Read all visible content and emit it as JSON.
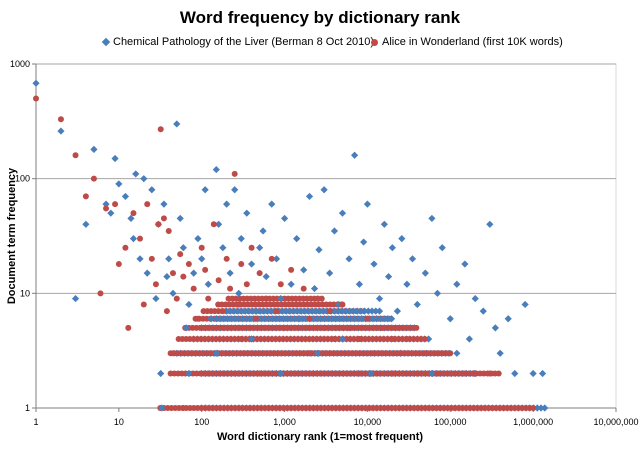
{
  "chart_data": {
    "type": "scatter",
    "title": "Word frequency by dictionary rank",
    "xlabel": "Word dictionary rank (1=most frequent)",
    "ylabel": "Document term frequency",
    "xscale": "log",
    "yscale": "log",
    "xlim": [
      1,
      10000000
    ],
    "ylim": [
      1,
      1000
    ],
    "x_ticks": [
      1,
      10,
      100,
      1000,
      10000,
      100000,
      1000000,
      10000000
    ],
    "x_tick_labels": [
      "1",
      "10",
      "100",
      "1,000",
      "10,000",
      "100,000",
      "1,000,000",
      "10,000,000"
    ],
    "y_ticks": [
      1,
      10,
      100,
      1000
    ],
    "y_tick_labels": [
      "1",
      "10",
      "100",
      "1000"
    ],
    "grid": "horizontal",
    "legend_position": "top",
    "colors": {
      "series1": "#4a7ebb",
      "series2": "#be4b48",
      "grid": "#a6a6a6",
      "axis": "#7f7f7f"
    },
    "series": [
      {
        "name": "Chemical Pathology of the Liver (Berman 8 Oct 2010)",
        "marker": "diamond",
        "points": [
          [
            1,
            680
          ],
          [
            2,
            260
          ],
          [
            3,
            9
          ],
          [
            4,
            40
          ],
          [
            5,
            180
          ],
          [
            7,
            60
          ],
          [
            8,
            50
          ],
          [
            9,
            150
          ],
          [
            10,
            90
          ],
          [
            12,
            70
          ],
          [
            14,
            45
          ],
          [
            15,
            30
          ],
          [
            16,
            110
          ],
          [
            18,
            20
          ],
          [
            20,
            100
          ],
          [
            22,
            15
          ],
          [
            25,
            80
          ],
          [
            28,
            9
          ],
          [
            30,
            40
          ],
          [
            32,
            2
          ],
          [
            33,
            1
          ],
          [
            35,
            60
          ],
          [
            38,
            14
          ],
          [
            40,
            20
          ],
          [
            45,
            10
          ],
          [
            50,
            300
          ],
          [
            55,
            45
          ],
          [
            60,
            25
          ],
          [
            65,
            5
          ],
          [
            70,
            8
          ],
          [
            80,
            15
          ],
          [
            90,
            30
          ],
          [
            100,
            20
          ],
          [
            110,
            80
          ],
          [
            120,
            12
          ],
          [
            130,
            6
          ],
          [
            150,
            120
          ],
          [
            160,
            40
          ],
          [
            180,
            25
          ],
          [
            200,
            60
          ],
          [
            220,
            15
          ],
          [
            250,
            80
          ],
          [
            280,
            10
          ],
          [
            300,
            30
          ],
          [
            350,
            50
          ],
          [
            400,
            18
          ],
          [
            450,
            7
          ],
          [
            500,
            25
          ],
          [
            550,
            35
          ],
          [
            600,
            14
          ],
          [
            700,
            60
          ],
          [
            800,
            20
          ],
          [
            900,
            9
          ],
          [
            1000,
            45
          ],
          [
            1200,
            12
          ],
          [
            1400,
            30
          ],
          [
            1500,
            6
          ],
          [
            1700,
            16
          ],
          [
            2000,
            70
          ],
          [
            2300,
            11
          ],
          [
            2600,
            24
          ],
          [
            3000,
            80
          ],
          [
            3500,
            15
          ],
          [
            4000,
            35
          ],
          [
            4500,
            8
          ],
          [
            5000,
            50
          ],
          [
            6000,
            20
          ],
          [
            7000,
            160
          ],
          [
            8000,
            12
          ],
          [
            9000,
            28
          ],
          [
            10000,
            60
          ],
          [
            12000,
            18
          ],
          [
            14000,
            9
          ],
          [
            16000,
            40
          ],
          [
            18000,
            14
          ],
          [
            20000,
            25
          ],
          [
            23000,
            7
          ],
          [
            26000,
            30
          ],
          [
            30000,
            12
          ],
          [
            35000,
            20
          ],
          [
            40000,
            8
          ],
          [
            50000,
            15
          ],
          [
            60000,
            45
          ],
          [
            70000,
            10
          ],
          [
            80000,
            25
          ],
          [
            100000,
            6
          ],
          [
            120000,
            12
          ],
          [
            150000,
            18
          ],
          [
            170000,
            4
          ],
          [
            200000,
            9
          ],
          [
            250000,
            7
          ],
          [
            300000,
            40
          ],
          [
            350000,
            5
          ],
          [
            400000,
            3
          ],
          [
            500000,
            6
          ],
          [
            600000,
            2
          ],
          [
            800000,
            8
          ],
          [
            1000000,
            2
          ],
          [
            1300000,
            2
          ],
          [
            70,
            2
          ],
          [
            150,
            3
          ],
          [
            400,
            4
          ],
          [
            900,
            2
          ],
          [
            2500,
            3
          ],
          [
            5000,
            4
          ],
          [
            11000,
            2
          ],
          [
            25000,
            3
          ],
          [
            60000,
            2
          ],
          [
            120000,
            3
          ],
          [
            200000,
            2
          ]
        ]
      },
      {
        "name": "Alice in Wonderland (first 10K words)",
        "marker": "circle",
        "points": [
          [
            1,
            500
          ],
          [
            2,
            330
          ],
          [
            3,
            160
          ],
          [
            4,
            70
          ],
          [
            5,
            100
          ],
          [
            6,
            10
          ],
          [
            7,
            55
          ],
          [
            9,
            60
          ],
          [
            10,
            18
          ],
          [
            12,
            25
          ],
          [
            13,
            5
          ],
          [
            15,
            50
          ],
          [
            18,
            30
          ],
          [
            20,
            8
          ],
          [
            22,
            60
          ],
          [
            25,
            20
          ],
          [
            28,
            12
          ],
          [
            30,
            40
          ],
          [
            32,
            270
          ],
          [
            35,
            45
          ],
          [
            38,
            7
          ],
          [
            40,
            35
          ],
          [
            45,
            15
          ],
          [
            50,
            9
          ],
          [
            55,
            22
          ],
          [
            60,
            14
          ],
          [
            70,
            18
          ],
          [
            80,
            11
          ],
          [
            90,
            6
          ],
          [
            100,
            25
          ],
          [
            110,
            16
          ],
          [
            120,
            9
          ],
          [
            140,
            40
          ],
          [
            160,
            13
          ],
          [
            180,
            7
          ],
          [
            200,
            20
          ],
          [
            220,
            11
          ],
          [
            250,
            110
          ],
          [
            280,
            8
          ],
          [
            300,
            18
          ],
          [
            350,
            12
          ],
          [
            400,
            25
          ],
          [
            450,
            6
          ],
          [
            500,
            15
          ],
          [
            600,
            9
          ],
          [
            700,
            20
          ],
          [
            800,
            7
          ],
          [
            900,
            12
          ],
          [
            1000,
            5
          ],
          [
            1200,
            16
          ],
          [
            1400,
            8
          ],
          [
            1700,
            11
          ],
          [
            2000,
            6
          ],
          [
            2500,
            9
          ],
          [
            3000,
            5
          ],
          [
            3500,
            7
          ],
          [
            4000,
            4
          ],
          [
            5000,
            8
          ],
          [
            6000,
            5
          ],
          [
            8000,
            4
          ],
          [
            10000,
            6
          ],
          [
            12000,
            3
          ],
          [
            15000,
            5
          ],
          [
            20000,
            4
          ],
          [
            25000,
            3
          ],
          [
            30000,
            4
          ],
          [
            40000,
            2
          ],
          [
            50000,
            3
          ],
          [
            70000,
            2
          ],
          [
            100000,
            2
          ],
          [
            150000,
            2
          ],
          [
            200000,
            2
          ],
          [
            300000,
            2
          ],
          [
            60,
            1
          ],
          [
            500,
            2
          ],
          [
            2000,
            3
          ],
          [
            8000,
            2
          ],
          [
            20000,
            2
          ],
          [
            45,
            3
          ],
          [
            300,
            4
          ]
        ]
      }
    ],
    "dense_bands": [
      {
        "series": 0,
        "y": 1,
        "x_from": 100,
        "x_to": 1500000
      },
      {
        "series": 1,
        "y": 1,
        "x_from": 30,
        "x_to": 1000000
      },
      {
        "series": 0,
        "y": 2,
        "x_from": 100,
        "x_to": 200000
      },
      {
        "series": 1,
        "y": 2,
        "x_from": 40,
        "x_to": 400000
      },
      {
        "series": 0,
        "y": 3,
        "x_from": 50,
        "x_to": 100000
      },
      {
        "series": 1,
        "y": 3,
        "x_from": 40,
        "x_to": 100000
      },
      {
        "series": 0,
        "y": 4,
        "x_from": 80,
        "x_to": 60000
      },
      {
        "series": 1,
        "y": 4,
        "x_from": 50,
        "x_to": 50000
      },
      {
        "series": 0,
        "y": 5,
        "x_from": 100,
        "x_to": 40000
      },
      {
        "series": 1,
        "y": 5,
        "x_from": 60,
        "x_to": 40000
      },
      {
        "series": 1,
        "y": 6,
        "x_from": 80,
        "x_to": 20000
      },
      {
        "series": 0,
        "y": 6,
        "x_from": 150,
        "x_to": 20000
      },
      {
        "series": 1,
        "y": 7,
        "x_from": 100,
        "x_to": 10000
      },
      {
        "series": 0,
        "y": 7,
        "x_from": 200,
        "x_to": 15000
      },
      {
        "series": 1,
        "y": 8,
        "x_from": 150,
        "x_to": 5000
      },
      {
        "series": 1,
        "y": 9,
        "x_from": 200,
        "x_to": 3000
      }
    ]
  }
}
